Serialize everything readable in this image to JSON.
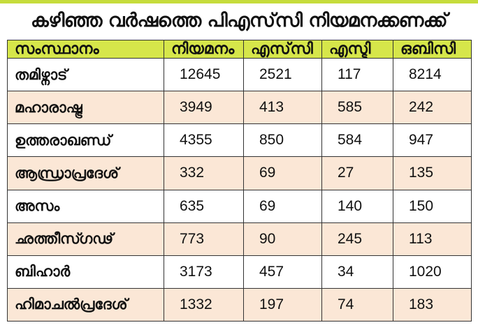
{
  "title": "കഴിഞ്ഞ വർഷത്തെ പിഎസ്‌സി നിയമനക്കണക്ക്",
  "colors": {
    "header_bg": "#d6e64a",
    "alt_row_bg": "#fbe7d6",
    "top_bar": "#c6dc3c"
  },
  "table": {
    "headers": [
      "സംസ്ഥാനം",
      "നിയമനം",
      "എസ്‌സി",
      "എസ്ടി",
      "ഒബിസി"
    ],
    "rows": [
      [
        "തമിഴ്നാട്",
        "12645",
        "2521",
        "117",
        "8214"
      ],
      [
        "മഹാരാഷ്ട്ര",
        "3949",
        "413",
        "585",
        "242"
      ],
      [
        "ഉത്തരാഖണ്ഡ്",
        "4355",
        "850",
        "584",
        "947"
      ],
      [
        "ആന്ധ്രാപ്രദേശ്",
        "332",
        "69",
        "27",
        "135"
      ],
      [
        "അസം",
        "635",
        "69",
        "140",
        "150"
      ],
      [
        "ഛത്തീസ്ഗഢ്",
        "773",
        "90",
        "245",
        "113"
      ],
      [
        "ബിഹാർ",
        "3173",
        "457",
        "34",
        "1020"
      ],
      [
        "ഹിമാചൽപ്രദേശ്",
        "1332",
        "197",
        "74",
        "183"
      ]
    ]
  }
}
